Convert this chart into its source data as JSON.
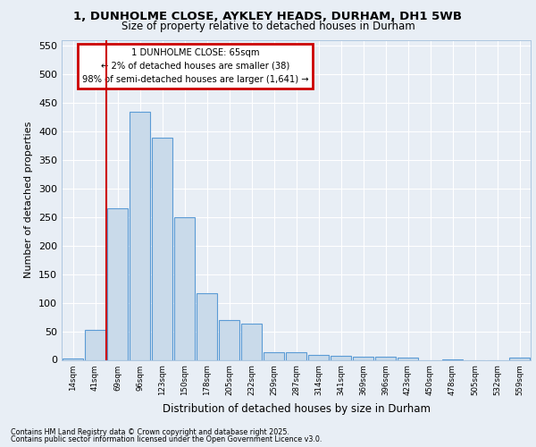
{
  "title1": "1, DUNHOLME CLOSE, AYKLEY HEADS, DURHAM, DH1 5WB",
  "title2": "Size of property relative to detached houses in Durham",
  "xlabel": "Distribution of detached houses by size in Durham",
  "ylabel": "Number of detached properties",
  "categories": [
    "14sqm",
    "41sqm",
    "69sqm",
    "96sqm",
    "123sqm",
    "150sqm",
    "178sqm",
    "205sqm",
    "232sqm",
    "259sqm",
    "287sqm",
    "314sqm",
    "341sqm",
    "369sqm",
    "396sqm",
    "423sqm",
    "450sqm",
    "478sqm",
    "505sqm",
    "532sqm",
    "559sqm"
  ],
  "values": [
    3,
    52,
    265,
    435,
    390,
    250,
    117,
    70,
    63,
    13,
    13,
    9,
    7,
    6,
    5,
    4,
    0,
    1,
    0,
    0,
    4
  ],
  "bar_color": "#c9daea",
  "bar_edge_color": "#5b9bd5",
  "annotation_title": "1 DUNHOLME CLOSE: 65sqm",
  "annotation_line1": "← 2% of detached houses are smaller (38)",
  "annotation_line2": "98% of semi-detached houses are larger (1,641) →",
  "vline_x": 1.5,
  "ylim": [
    0,
    560
  ],
  "yticks": [
    0,
    50,
    100,
    150,
    200,
    250,
    300,
    350,
    400,
    450,
    500,
    550
  ],
  "footnote1": "Contains HM Land Registry data © Crown copyright and database right 2025.",
  "footnote2": "Contains public sector information licensed under the Open Government Licence v3.0.",
  "bg_color": "#e8eef5",
  "grid_color": "#ffffff",
  "annotation_box_color": "#cc0000"
}
